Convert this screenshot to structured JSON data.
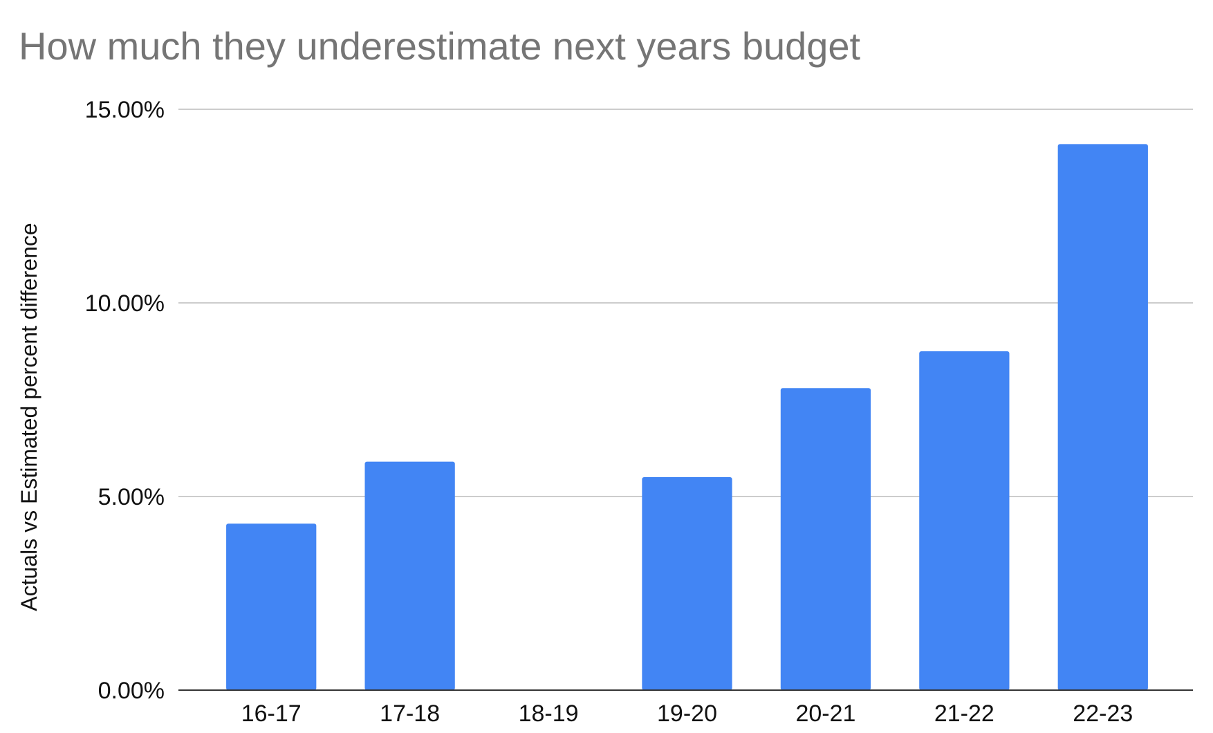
{
  "chart_data": {
    "type": "bar",
    "title": "How much they underestimate next years budget",
    "xlabel": "",
    "ylabel": "Actuals vs Estimated percent difference",
    "categories": [
      "16-17",
      "17-18",
      "18-19",
      "19-20",
      "20-21",
      "21-22",
      "22-23"
    ],
    "values": [
      4.3,
      5.9,
      0,
      5.5,
      7.8,
      8.75,
      14.1
    ],
    "ylim": [
      0,
      15
    ],
    "yticks": [
      0,
      5,
      10,
      15
    ],
    "ytick_labels": [
      "0.00%",
      "5.00%",
      "10.00%",
      "15.00%"
    ],
    "grid": true,
    "legend": "none",
    "colors": {
      "bar": "#4285f4",
      "grid": "#cccccc",
      "axis": "#333333",
      "title": "#757575",
      "text": "#111111"
    }
  }
}
